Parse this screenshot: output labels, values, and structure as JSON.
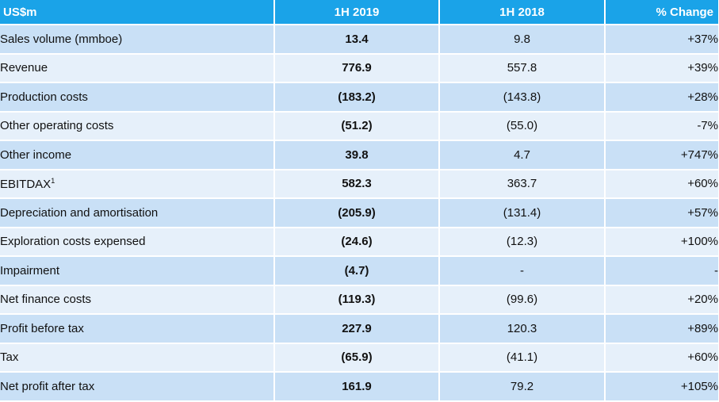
{
  "table": {
    "headers": [
      "US$m",
      "1H 2019",
      "1H 2018",
      "% Change"
    ],
    "rows": [
      {
        "label": "Sales volume (mmboe)",
        "sup": "",
        "cur": "13.4",
        "prev": "9.8",
        "change": "+37%"
      },
      {
        "label": "Revenue",
        "sup": "",
        "cur": "776.9",
        "prev": "557.8",
        "change": "+39%"
      },
      {
        "label": "Production costs",
        "sup": "",
        "cur": "(183.2)",
        "prev": "(143.8)",
        "change": "+28%"
      },
      {
        "label": "Other operating costs",
        "sup": "",
        "cur": "(51.2)",
        "prev": "(55.0)",
        "change": "-7%"
      },
      {
        "label": "Other income",
        "sup": "",
        "cur": "39.8",
        "prev": "4.7",
        "change": "+747%"
      },
      {
        "label": "EBITDAX",
        "sup": "1",
        "cur": "582.3",
        "prev": "363.7",
        "change": "+60%"
      },
      {
        "label": "Depreciation and amortisation",
        "sup": "",
        "cur": "(205.9)",
        "prev": "(131.4)",
        "change": "+57%"
      },
      {
        "label": "Exploration costs expensed",
        "sup": "",
        "cur": "(24.6)",
        "prev": "(12.3)",
        "change": "+100%"
      },
      {
        "label": "Impairment",
        "sup": "",
        "cur": "(4.7)",
        "prev": "-",
        "change": "-"
      },
      {
        "label": "Net finance costs",
        "sup": "",
        "cur": "(119.3)",
        "prev": "(99.6)",
        "change": "+20%"
      },
      {
        "label": "Profit before tax",
        "sup": "",
        "cur": "227.9",
        "prev": "120.3",
        "change": "+89%"
      },
      {
        "label": "Tax",
        "sup": "",
        "cur": "(65.9)",
        "prev": "(41.1)",
        "change": "+60%"
      },
      {
        "label": "Net profit after tax",
        "sup": "",
        "cur": "161.9",
        "prev": "79.2",
        "change": "+105%"
      }
    ]
  },
  "colors": {
    "header_bg": "#1aa3e8",
    "row_dark": "#c9e0f6",
    "row_light": "#e6f0fa"
  }
}
